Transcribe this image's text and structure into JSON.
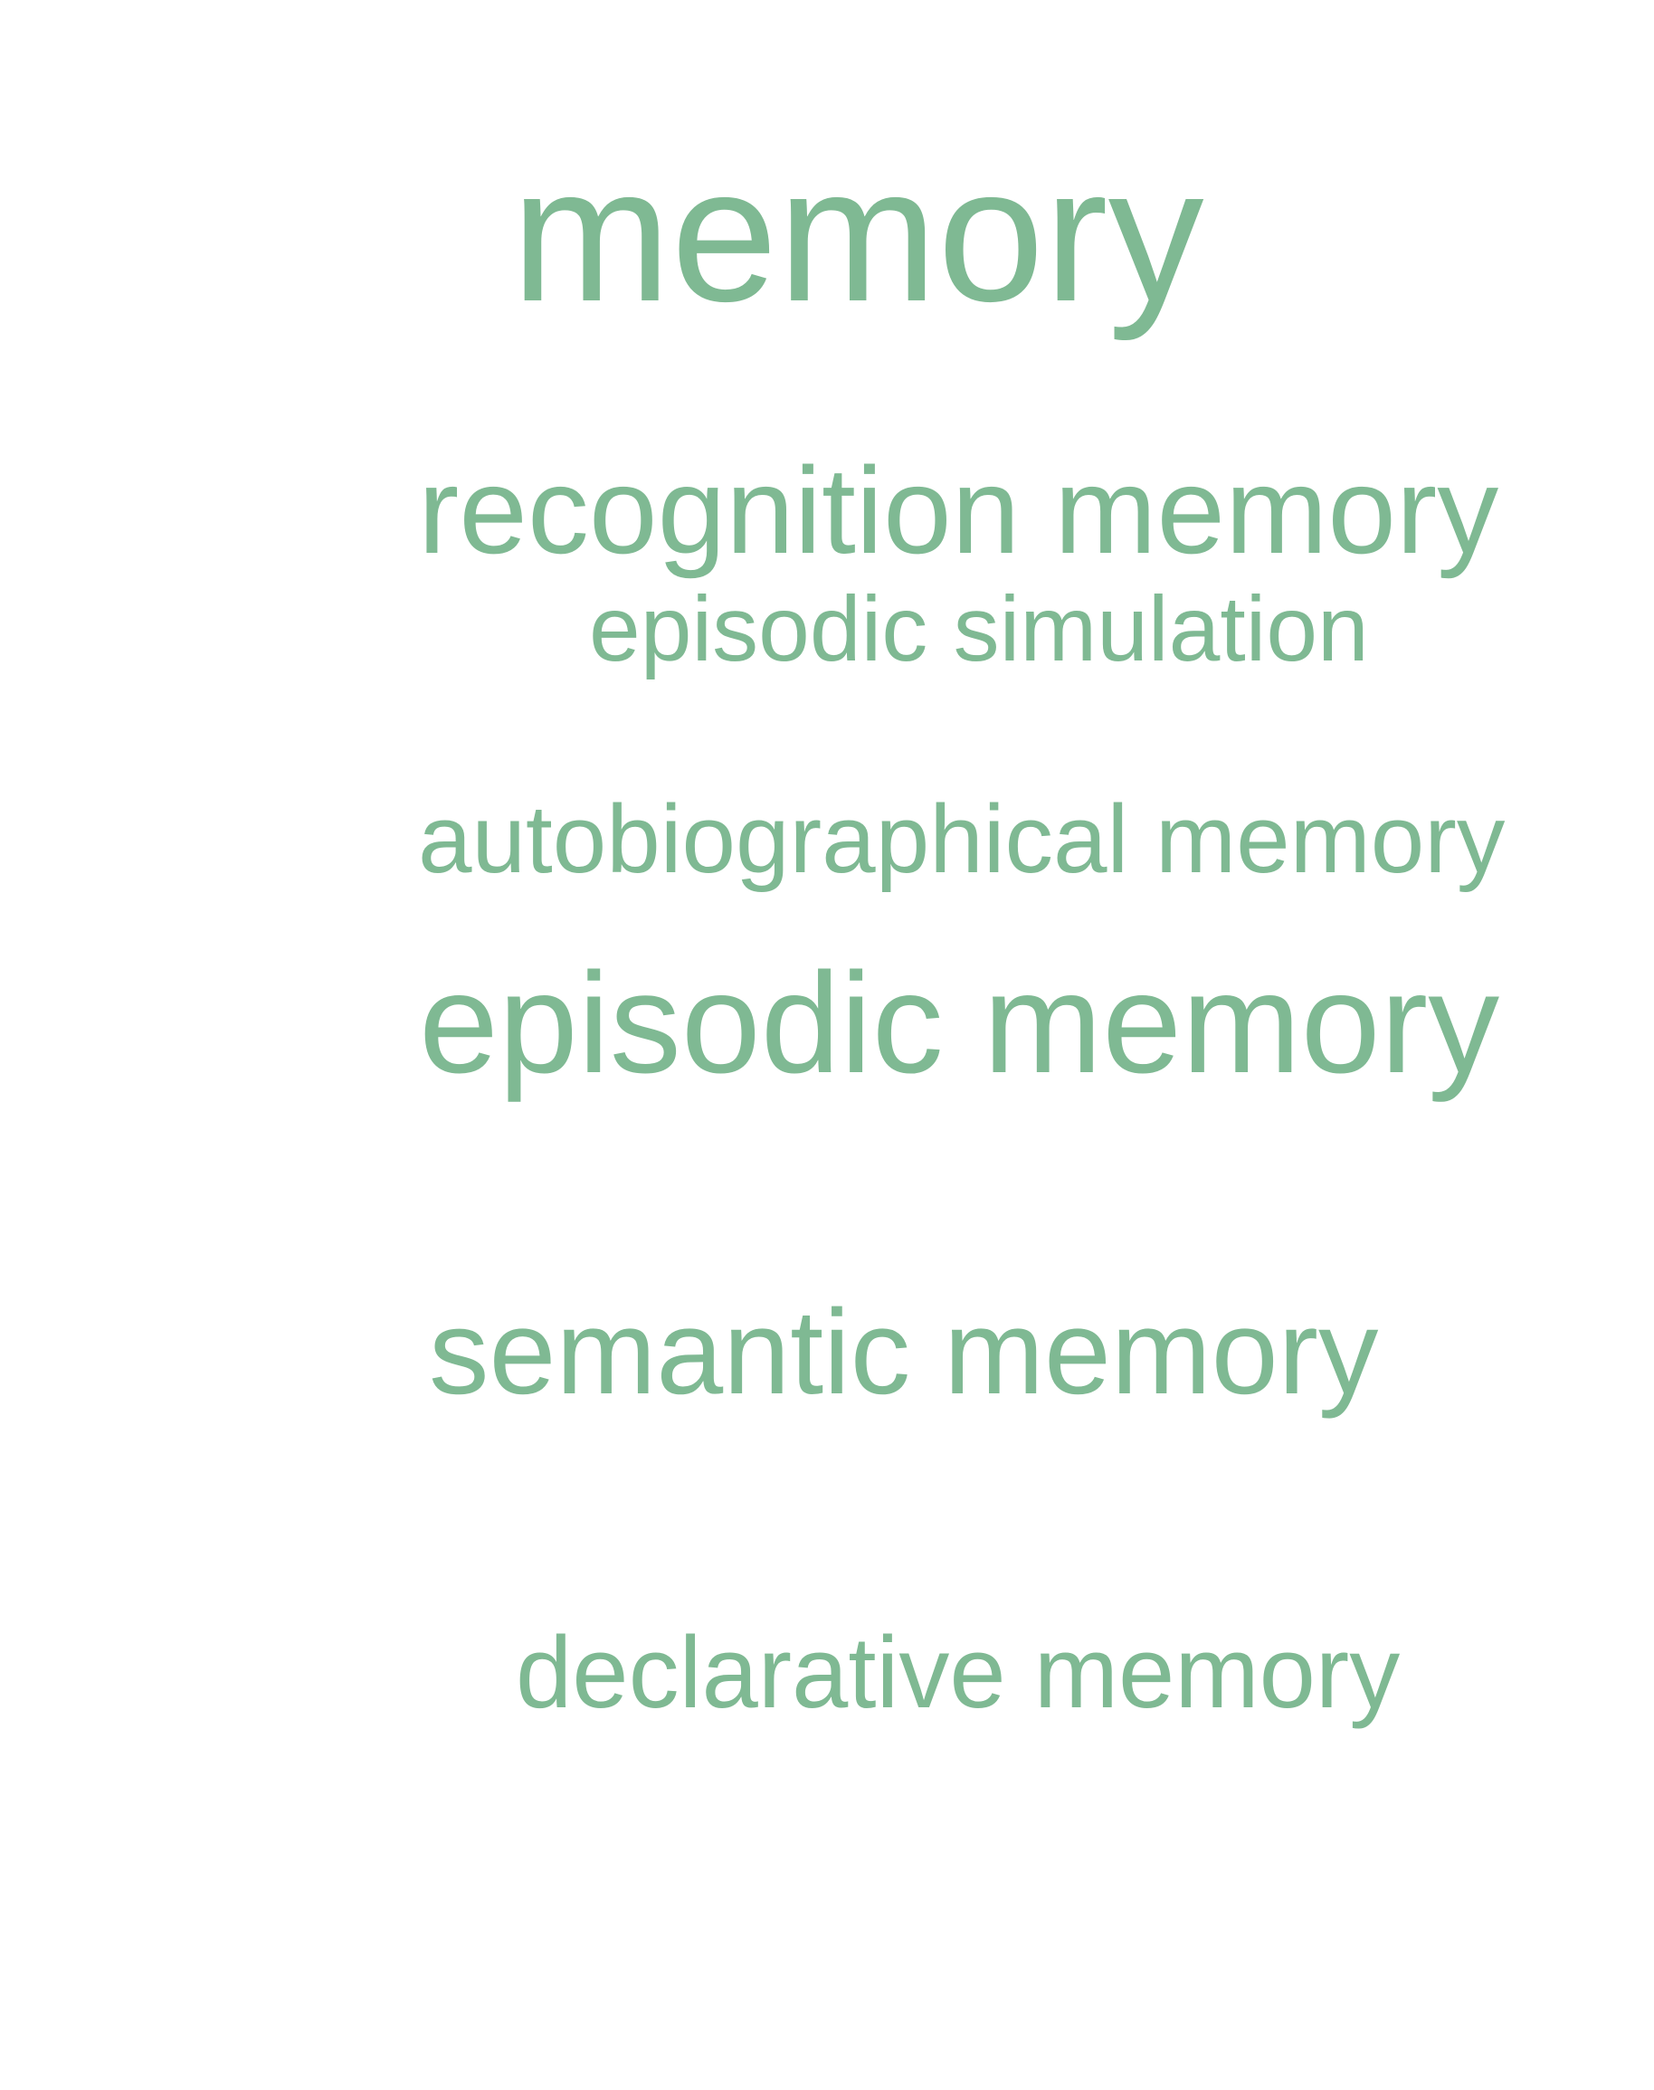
{
  "word_cloud": {
    "color": "#7fb993",
    "words": [
      {
        "text": "memory"
      },
      {
        "text": "recognition memory"
      },
      {
        "text": "episodic simulation"
      },
      {
        "text": "autobiographical memory"
      },
      {
        "text": "episodic memory"
      },
      {
        "text": "semantic memory"
      },
      {
        "text": "declarative memory"
      }
    ]
  }
}
